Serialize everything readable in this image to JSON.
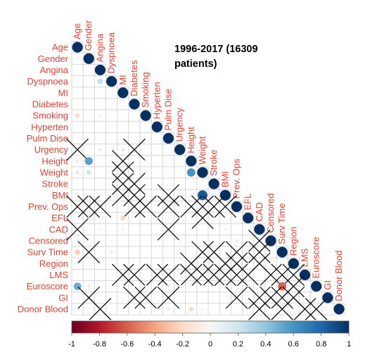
{
  "chart_data": {
    "type": "heatmap",
    "title_line1": "1996-2017 (16309",
    "title_line2": "patients)",
    "variables": [
      "Age",
      "Gender",
      "Angina",
      "Dyspnoea",
      "MI",
      "Diabetes",
      "Smoking",
      "Hyperten",
      "Pulm Dise",
      "Urgency",
      "Height",
      "Weight",
      "Stroke",
      "BMI",
      "Prev. Ops",
      "EFL",
      "CAD",
      "Censored",
      "Surv Time",
      "Region",
      "LMS",
      "Euroscore",
      "GI",
      "Donor Blood"
    ],
    "colorbar": {
      "range": [
        -1,
        1
      ],
      "ticks": [
        "-1",
        "-0.8",
        "-0.6",
        "-0.4",
        "-0.2",
        "0",
        "0.2",
        "0.4",
        "0.6",
        "0.8",
        "1"
      ],
      "colors": [
        "#67001f",
        "#b2182b",
        "#d6604d",
        "#f4a582",
        "#fddbc7",
        "#f7f7f7",
        "#d1e5f0",
        "#92c5de",
        "#4393c3",
        "#2166ac",
        "#053061"
      ]
    },
    "correlations": [
      [
        1,
        0,
        3,
        0.03
      ],
      [
        3,
        0,
        -0.05
      ],
      [
        3,
        2,
        0.25
      ],
      [
        6,
        0,
        -0.2
      ],
      [
        6,
        2,
        0.03
      ],
      [
        9,
        0,
        "X"
      ],
      [
        9,
        2,
        0.1
      ],
      [
        9,
        4,
        0.12
      ],
      [
        9,
        5,
        "X"
      ],
      [
        10,
        0,
        -0.1
      ],
      [
        10,
        1,
        0.55
      ],
      [
        10,
        3,
        0.03
      ],
      [
        10,
        4,
        "X"
      ],
      [
        10,
        6,
        0.05
      ],
      [
        11,
        0,
        -0.15
      ],
      [
        11,
        1,
        0.2
      ],
      [
        11,
        4,
        "X"
      ],
      [
        11,
        6,
        0.04
      ],
      [
        11,
        10,
        0.6
      ],
      [
        12,
        4,
        "X"
      ],
      [
        12,
        5,
        "X"
      ],
      [
        13,
        0,
        -0.12
      ],
      [
        13,
        4,
        "X"
      ],
      [
        13,
        5,
        "X"
      ],
      [
        13,
        8,
        "X"
      ],
      [
        13,
        10,
        0.1
      ],
      [
        13,
        11,
        0.85
      ],
      [
        14,
        0,
        "X"
      ],
      [
        14,
        1,
        "X"
      ],
      [
        14,
        2,
        "X"
      ],
      [
        14,
        5,
        "X"
      ],
      [
        14,
        6,
        "X"
      ],
      [
        14,
        8,
        "X"
      ],
      [
        14,
        10,
        "X"
      ],
      [
        14,
        11,
        "X"
      ],
      [
        14,
        12,
        "X"
      ],
      [
        14,
        13,
        "X"
      ],
      [
        15,
        0,
        0.04
      ],
      [
        15,
        4,
        -0.22
      ],
      [
        15,
        8,
        0.05
      ],
      [
        15,
        11,
        "X"
      ],
      [
        16,
        0,
        "X"
      ],
      [
        16,
        2,
        0.05
      ],
      [
        16,
        4,
        0.08
      ],
      [
        16,
        8,
        "X"
      ],
      [
        16,
        10,
        0.05
      ],
      [
        16,
        13,
        -0.04
      ],
      [
        17,
        0,
        0.03
      ],
      [
        17,
        3,
        -0.04
      ],
      [
        17,
        5,
        0.03
      ],
      [
        17,
        9,
        0.05
      ],
      [
        17,
        14,
        -0.1
      ],
      [
        17,
        16,
        "X"
      ],
      [
        18,
        0,
        -0.25
      ],
      [
        18,
        1,
        "X"
      ],
      [
        18,
        3,
        0.1
      ],
      [
        18,
        9,
        0.05
      ],
      [
        18,
        11,
        "X"
      ],
      [
        18,
        12,
        "X"
      ],
      [
        18,
        14,
        "X"
      ],
      [
        18,
        16,
        "X"
      ],
      [
        19,
        10,
        "X"
      ],
      [
        19,
        13,
        "X"
      ],
      [
        19,
        14,
        "X"
      ],
      [
        19,
        16,
        "X"
      ],
      [
        20,
        4,
        "X"
      ],
      [
        20,
        5,
        "X"
      ],
      [
        20,
        7,
        "X"
      ],
      [
        20,
        8,
        "X"
      ],
      [
        20,
        10,
        "X"
      ],
      [
        20,
        11,
        "X"
      ],
      [
        20,
        12,
        "X"
      ],
      [
        20,
        13,
        "X"
      ],
      [
        20,
        14,
        "X"
      ],
      [
        20,
        15,
        "X"
      ],
      [
        20,
        17,
        "X"
      ],
      [
        20,
        18,
        "X"
      ],
      [
        20,
        19,
        "X"
      ],
      [
        21,
        0,
        0.5
      ],
      [
        21,
        1,
        -0.1
      ],
      [
        21,
        4,
        0.03
      ],
      [
        21,
        6,
        -0.05
      ],
      [
        21,
        7,
        0.05
      ],
      [
        21,
        8,
        0.1
      ],
      [
        21,
        9,
        0.12
      ],
      [
        21,
        10,
        0.05
      ],
      [
        21,
        11,
        -0.1
      ],
      [
        21,
        13,
        0.1
      ],
      [
        21,
        16,
        0.1
      ],
      [
        21,
        18,
        -0.6
      ],
      [
        21,
        19,
        "X"
      ],
      [
        22,
        1,
        "X"
      ],
      [
        22,
        5,
        "X"
      ],
      [
        22,
        6,
        "X"
      ],
      [
        22,
        8,
        "X"
      ],
      [
        22,
        14,
        "X"
      ],
      [
        22,
        16,
        "X"
      ],
      [
        22,
        17,
        "X"
      ],
      [
        22,
        18,
        "X"
      ],
      [
        22,
        19,
        "X"
      ],
      [
        23,
        2,
        "X"
      ],
      [
        23,
        8,
        -0.1
      ],
      [
        23,
        10,
        -0.2
      ],
      [
        23,
        11,
        -0.05
      ],
      [
        23,
        16,
        "X"
      ],
      [
        23,
        18,
        "X"
      ],
      [
        23,
        20,
        "X"
      ],
      [
        23,
        21,
        "X"
      ]
    ]
  }
}
